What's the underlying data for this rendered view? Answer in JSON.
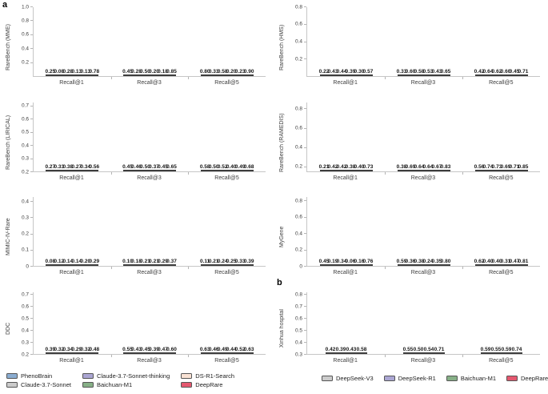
{
  "panels": {
    "a": "a",
    "b": "b"
  },
  "palette": {
    "PhenoBrain": "#8badd1",
    "Claude-3.7-Sonnet": "#cbcbcb",
    "Claude-3.7-Sonnet-thinking": "#aba6d3",
    "Baichuan-M1": "#87b087",
    "DS-R1-Search": "#f9e2d4",
    "DeepRare": "#e4586f",
    "DeepSeek-V3": "#cbcbcb",
    "DeepSeek-R1": "#aba6d3"
  },
  "legend_a": [
    "PhenoBrain",
    "Claude-3.7-Sonnet",
    "Claude-3.7-Sonnet-thinking",
    "Baichuan-M1",
    "DS-R1-Search",
    "DeepRare"
  ],
  "legend_b": [
    "DeepSeek-V3",
    "DeepSeek-R1",
    "Baichuan-M1",
    "DeepRare"
  ],
  "chart_data": [
    {
      "type": "bar",
      "panel": "a",
      "ylabel": "RareBench (MME)",
      "ymin": 0,
      "ymax": 1.0,
      "yticks": [
        "0.2",
        "0.4",
        "0.6",
        "0.8",
        "1.0"
      ],
      "categories": [
        "Recall@1",
        "Recall@3",
        "Recall@5"
      ],
      "series": [
        {
          "name": "PhenoBrain",
          "values": [
            0.25,
            0.45,
            0.8
          ]
        },
        {
          "name": "Claude-3.7-Sonnet",
          "values": [
            0.08,
            0.28,
            0.33
          ]
        },
        {
          "name": "Claude-3.7-Sonnet-thinking",
          "values": [
            0.28,
            0.5,
            0.58
          ]
        },
        {
          "name": "Baichuan-M1",
          "values": [
            0.13,
            0.2,
            0.2
          ]
        },
        {
          "name": "DS-R1-Search",
          "values": [
            0.13,
            0.18,
            0.23
          ]
        },
        {
          "name": "DeepRare",
          "values": [
            0.78,
            0.85,
            0.9
          ]
        }
      ]
    },
    {
      "type": "bar",
      "panel": "a",
      "ylabel": "RareBench (HMS)",
      "ymin": 0,
      "ymax": 0.8,
      "yticks": [
        "0.2",
        "0.4",
        "0.6",
        "0.8"
      ],
      "categories": [
        "Recall@1",
        "Recall@3",
        "Recall@5"
      ],
      "series": [
        {
          "name": "PhenoBrain",
          "values": [
            0.22,
            0.33,
            0.42
          ]
        },
        {
          "name": "Claude-3.7-Sonnet",
          "values": [
            0.43,
            0.6,
            0.64
          ]
        },
        {
          "name": "Claude-3.7-Sonnet-thinking",
          "values": [
            0.44,
            0.58,
            0.62
          ]
        },
        {
          "name": "Baichuan-M1",
          "values": [
            0.39,
            0.53,
            0.6
          ]
        },
        {
          "name": "DS-R1-Search",
          "values": [
            0.3,
            0.43,
            0.45
          ]
        },
        {
          "name": "DeepRare",
          "values": [
            0.57,
            0.65,
            0.71
          ]
        }
      ]
    },
    {
      "type": "bar",
      "panel": "a",
      "ylabel": "RareBench (LIRICAL)",
      "ymin": 0.2,
      "ymax": 0.73,
      "yticks": [
        "0.2",
        "0.3",
        "0.4",
        "0.5",
        "0.6",
        "0.7"
      ],
      "categories": [
        "Recall@1",
        "Recall@3",
        "Recall@5"
      ],
      "series": [
        {
          "name": "PhenoBrain",
          "values": [
            0.27,
            0.45,
            0.58
          ]
        },
        {
          "name": "Claude-3.7-Sonnet",
          "values": [
            0.33,
            0.46,
            0.5
          ]
        },
        {
          "name": "Claude-3.7-Sonnet-thinking",
          "values": [
            0.38,
            0.5,
            0.52
          ]
        },
        {
          "name": "Baichuan-M1",
          "values": [
            0.27,
            0.37,
            0.4
          ]
        },
        {
          "name": "DS-R1-Search",
          "values": [
            0.34,
            0.45,
            0.49
          ]
        },
        {
          "name": "DeepRare",
          "values": [
            0.56,
            0.65,
            0.68
          ]
        }
      ]
    },
    {
      "type": "bar",
      "panel": "a",
      "ylabel": "RareBench (RAMEDIS)",
      "ymin": 0.15,
      "ymax": 0.87,
      "yticks": [
        "0.2",
        "0.4",
        "0.6",
        "0.8"
      ],
      "categories": [
        "Recall@1",
        "Recall@3",
        "Recall@5"
      ],
      "series": [
        {
          "name": "PhenoBrain",
          "values": [
            0.21,
            0.38,
            0.56
          ]
        },
        {
          "name": "Claude-3.7-Sonnet",
          "values": [
            0.42,
            0.69,
            0.74
          ]
        },
        {
          "name": "Claude-3.7-Sonnet-thinking",
          "values": [
            0.42,
            0.64,
            0.73
          ]
        },
        {
          "name": "Baichuan-M1",
          "values": [
            0.38,
            0.64,
            0.69
          ]
        },
        {
          "name": "DS-R1-Search",
          "values": [
            0.4,
            0.67,
            0.71
          ]
        },
        {
          "name": "DeepRare",
          "values": [
            0.73,
            0.83,
            0.85
          ]
        }
      ]
    },
    {
      "type": "bar",
      "panel": "a",
      "ylabel": "MIMIC-IV-Rare",
      "ymin": 0,
      "ymax": 0.43,
      "yticks": [
        "0",
        "0.1",
        "0.2",
        "0.3",
        "0.4"
      ],
      "categories": [
        "Recall@1",
        "Recall@3",
        "Recall@5"
      ],
      "series": [
        {
          "name": "PhenoBrain",
          "values": [
            0.08,
            0.1,
            0.11
          ]
        },
        {
          "name": "Claude-3.7-Sonnet",
          "values": [
            0.12,
            0.18,
            0.21
          ]
        },
        {
          "name": "Claude-3.7-Sonnet-thinking",
          "values": [
            0.14,
            0.21,
            0.24
          ]
        },
        {
          "name": "Baichuan-M1",
          "values": [
            0.14,
            0.21,
            0.25
          ]
        },
        {
          "name": "DS-R1-Search",
          "values": [
            0.2,
            0.29,
            0.33
          ]
        },
        {
          "name": "DeepRare",
          "values": [
            0.29,
            0.37,
            0.39
          ]
        }
      ]
    },
    {
      "type": "bar",
      "panel": "a",
      "ylabel": "MyGene",
      "ymin": 0,
      "ymax": 0.85,
      "yticks": [
        "0",
        "0.2",
        "0.4",
        "0.6",
        "0.8"
      ],
      "categories": [
        "Recall@1",
        "Recall@3",
        "Recall@5"
      ],
      "series": [
        {
          "name": "PhenoBrain",
          "values": [
            0.45,
            0.59,
            0.62
          ]
        },
        {
          "name": "Claude-3.7-Sonnet",
          "values": [
            0.19,
            0.36,
            0.4
          ]
        },
        {
          "name": "Claude-3.7-Sonnet-thinking",
          "values": [
            0.34,
            0.38,
            0.4
          ]
        },
        {
          "name": "Baichuan-M1",
          "values": [
            0.06,
            0.24,
            0.31
          ]
        },
        {
          "name": "DS-R1-Search",
          "values": [
            0.16,
            0.35,
            0.47
          ]
        },
        {
          "name": "DeepRare",
          "values": [
            0.76,
            0.8,
            0.81
          ]
        }
      ]
    },
    {
      "type": "bar",
      "panel": "a",
      "ylabel": "DDC",
      "ymin": 0.2,
      "ymax": 0.72,
      "yticks": [
        "0.2",
        "0.3",
        "0.4",
        "0.5",
        "0.6",
        "0.7"
      ],
      "categories": [
        "Recall@1",
        "Recall@3",
        "Recall@5"
      ],
      "series": [
        {
          "name": "PhenoBrain",
          "values": [
            0.39,
            0.55,
            0.63
          ]
        },
        {
          "name": "Claude-3.7-Sonnet",
          "values": [
            0.32,
            0.43,
            0.46
          ]
        },
        {
          "name": "Claude-3.7-Sonnet-thinking",
          "values": [
            0.34,
            0.45,
            0.49
          ]
        },
        {
          "name": "Baichuan-M1",
          "values": [
            0.29,
            0.39,
            0.44
          ]
        },
        {
          "name": "DS-R1-Search",
          "values": [
            0.32,
            0.47,
            0.52
          ]
        },
        {
          "name": "DeepRare",
          "values": [
            0.48,
            0.6,
            0.63
          ]
        }
      ]
    },
    {
      "type": "bar",
      "panel": "b",
      "ylabel": "Xinhua hospital",
      "ymin": 0.3,
      "ymax": 0.82,
      "yticks": [
        "0.3",
        "0.4",
        "0.5",
        "0.6",
        "0.7",
        "0.8"
      ],
      "categories": [
        "Recall@1",
        "Recall@3",
        "Recall@5"
      ],
      "series": [
        {
          "name": "DeepSeek-V3",
          "values": [
            0.42,
            0.55,
            0.59
          ]
        },
        {
          "name": "DeepSeek-R1",
          "values": [
            0.39,
            0.5,
            0.55
          ]
        },
        {
          "name": "Baichuan-M1",
          "values": [
            0.43,
            0.54,
            0.59
          ]
        },
        {
          "name": "DeepRare",
          "values": [
            0.58,
            0.71,
            0.74
          ]
        }
      ]
    }
  ]
}
